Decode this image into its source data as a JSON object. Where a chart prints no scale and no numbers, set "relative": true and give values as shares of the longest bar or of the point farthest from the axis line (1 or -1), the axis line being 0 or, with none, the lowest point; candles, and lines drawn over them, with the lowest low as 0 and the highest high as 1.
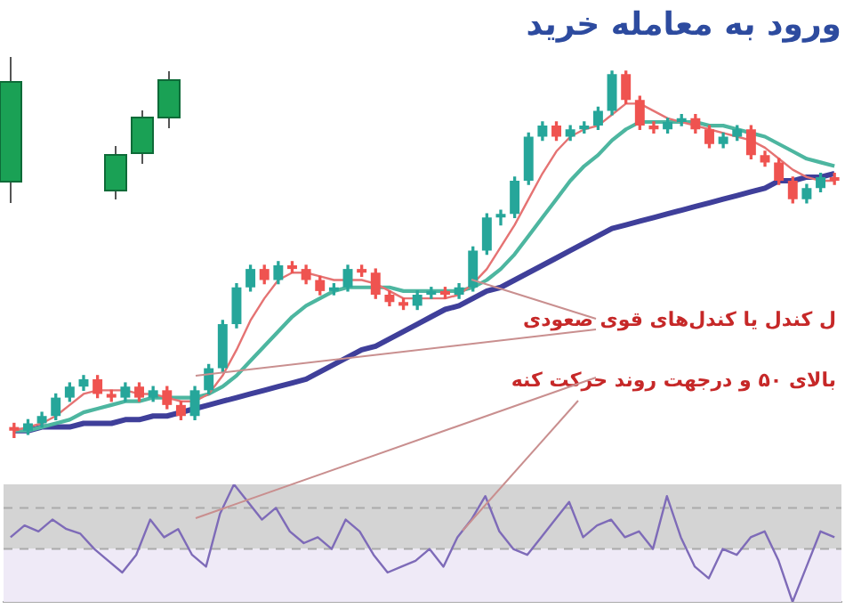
{
  "chart_data": [
    {
      "type": "candlestick",
      "title": "ورود به معامله خرید",
      "relative": true,
      "categories": [
        null,
        null,
        null,
        null,
        null,
        null,
        null,
        null,
        null,
        null,
        null,
        null,
        null,
        null,
        null,
        null,
        null,
        null,
        null,
        null,
        null,
        null,
        null,
        null,
        null,
        null,
        null,
        null,
        null,
        null,
        null,
        null,
        null,
        null,
        null,
        null,
        null,
        null,
        null,
        null,
        null,
        null,
        null,
        null,
        null,
        null,
        null,
        null,
        null,
        null,
        null,
        null,
        null,
        null,
        null,
        null,
        null,
        null,
        null,
        null
      ],
      "ohlc": [
        [
          0.03,
          0.04,
          0,
          0.02
        ],
        [
          0.02,
          0.05,
          0.01,
          0.04
        ],
        [
          0.04,
          0.07,
          0.03,
          0.06
        ],
        [
          0.06,
          0.12,
          0.05,
          0.11
        ],
        [
          0.11,
          0.15,
          0.1,
          0.14
        ],
        [
          0.14,
          0.17,
          0.13,
          0.16
        ],
        [
          0.16,
          0.17,
          0.11,
          0.12
        ],
        [
          0.12,
          0.13,
          0.1,
          0.11
        ],
        [
          0.11,
          0.15,
          0.1,
          0.14
        ],
        [
          0.14,
          0.15,
          0.1,
          0.11
        ],
        [
          0.11,
          0.14,
          0.1,
          0.13
        ],
        [
          0.13,
          0.14,
          0.08,
          0.09
        ],
        [
          0.09,
          0.1,
          0.05,
          0.06
        ],
        [
          0.06,
          0.14,
          0.05,
          0.13
        ],
        [
          0.13,
          0.2,
          0.12,
          0.19
        ],
        [
          0.19,
          0.32,
          0.18,
          0.31
        ],
        [
          0.31,
          0.42,
          0.3,
          0.41
        ],
        [
          0.41,
          0.47,
          0.4,
          0.46
        ],
        [
          0.46,
          0.47,
          0.42,
          0.43
        ],
        [
          0.43,
          0.48,
          0.42,
          0.47
        ],
        [
          0.47,
          0.48,
          0.45,
          0.46
        ],
        [
          0.46,
          0.47,
          0.42,
          0.43
        ],
        [
          0.43,
          0.44,
          0.39,
          0.4
        ],
        [
          0.4,
          0.42,
          0.39,
          0.41
        ],
        [
          0.41,
          0.47,
          0.4,
          0.46
        ],
        [
          0.46,
          0.47,
          0.44,
          0.45
        ],
        [
          0.45,
          0.46,
          0.38,
          0.39
        ],
        [
          0.39,
          0.4,
          0.36,
          0.37
        ],
        [
          0.37,
          0.38,
          0.35,
          0.36
        ],
        [
          0.36,
          0.4,
          0.35,
          0.39
        ],
        [
          0.39,
          0.41,
          0.38,
          0.4
        ],
        [
          0.4,
          0.41,
          0.38,
          0.39
        ],
        [
          0.39,
          0.42,
          0.38,
          0.41
        ],
        [
          0.41,
          0.52,
          0.4,
          0.51
        ],
        [
          0.51,
          0.61,
          0.5,
          0.6
        ],
        [
          0.6,
          0.62,
          0.58,
          0.61
        ],
        [
          0.61,
          0.71,
          0.6,
          0.7
        ],
        [
          0.7,
          0.83,
          0.69,
          0.82
        ],
        [
          0.82,
          0.86,
          0.81,
          0.85
        ],
        [
          0.85,
          0.86,
          0.81,
          0.82
        ],
        [
          0.82,
          0.85,
          0.81,
          0.84
        ],
        [
          0.84,
          0.86,
          0.83,
          0.85
        ],
        [
          0.85,
          0.9,
          0.84,
          0.89
        ],
        [
          0.89,
          1,
          0.88,
          0.99
        ],
        [
          0.99,
          1,
          0.91,
          0.92
        ],
        [
          0.92,
          0.93,
          0.84,
          0.85
        ],
        [
          0.85,
          0.86,
          0.83,
          0.84
        ],
        [
          0.84,
          0.87,
          0.83,
          0.86
        ],
        [
          0.86,
          0.88,
          0.85,
          0.87
        ],
        [
          0.87,
          0.88,
          0.83,
          0.84
        ],
        [
          0.84,
          0.85,
          0.79,
          0.8
        ],
        [
          0.8,
          0.83,
          0.79,
          0.82
        ],
        [
          0.82,
          0.85,
          0.81,
          0.84
        ],
        [
          0.84,
          0.85,
          0.76,
          0.77
        ],
        [
          0.77,
          0.78,
          0.74,
          0.75
        ],
        [
          0.75,
          0.76,
          0.69,
          0.7
        ],
        [
          0.7,
          0.71,
          0.64,
          0.65
        ],
        [
          0.65,
          0.69,
          0.64,
          0.68
        ],
        [
          0.68,
          0.72,
          0.67,
          0.71
        ],
        [
          0.71,
          0.72,
          0.69,
          0.7
        ]
      ],
      "series": [
        {
          "type": "line",
          "color": "#e57373",
          "values": [
            0.02,
            0.03,
            0.04,
            0.06,
            0.09,
            0.12,
            0.13,
            0.13,
            0.13,
            0.12,
            0.12,
            0.11,
            0.1,
            0.1,
            0.12,
            0.17,
            0.24,
            0.32,
            0.38,
            0.43,
            0.45,
            0.45,
            0.44,
            0.43,
            0.43,
            0.43,
            0.42,
            0.4,
            0.38,
            0.38,
            0.38,
            0.38,
            0.39,
            0.42,
            0.46,
            0.52,
            0.58,
            0.65,
            0.72,
            0.78,
            0.82,
            0.84,
            0.85,
            0.88,
            0.91,
            0.91,
            0.89,
            0.87,
            0.86,
            0.85,
            0.84,
            0.83,
            0.82,
            0.81,
            0.79,
            0.76,
            0.73,
            0.71,
            0.7,
            0.7
          ]
        },
        {
          "type": "line",
          "color": "#4db6a0",
          "values": [
            0.02,
            0.02,
            0.03,
            0.04,
            0.05,
            0.07,
            0.08,
            0.09,
            0.1,
            0.1,
            0.11,
            0.11,
            0.11,
            0.11,
            0.12,
            0.14,
            0.17,
            0.21,
            0.25,
            0.29,
            0.33,
            0.36,
            0.38,
            0.4,
            0.41,
            0.41,
            0.41,
            0.41,
            0.4,
            0.4,
            0.4,
            0.4,
            0.4,
            0.41,
            0.43,
            0.46,
            0.5,
            0.55,
            0.6,
            0.65,
            0.7,
            0.74,
            0.77,
            0.81,
            0.84,
            0.86,
            0.86,
            0.86,
            0.86,
            0.86,
            0.85,
            0.85,
            0.84,
            0.83,
            0.82,
            0.8,
            0.78,
            0.76,
            0.75,
            0.74
          ]
        },
        {
          "type": "line",
          "color": "#3f3f9a",
          "values": [
            0.02,
            0.02,
            0.03,
            0.03,
            0.03,
            0.04,
            0.04,
            0.04,
            0.05,
            0.05,
            0.06,
            0.06,
            0.07,
            0.08,
            0.09,
            0.1,
            0.11,
            0.12,
            0.13,
            0.14,
            0.15,
            0.16,
            0.18,
            0.2,
            0.22,
            0.24,
            0.25,
            0.27,
            0.29,
            0.31,
            0.33,
            0.35,
            0.36,
            0.38,
            0.4,
            0.41,
            0.43,
            0.45,
            0.47,
            0.49,
            0.51,
            0.53,
            0.55,
            0.57,
            0.58,
            0.59,
            0.6,
            0.61,
            0.62,
            0.63,
            0.64,
            0.65,
            0.66,
            0.67,
            0.68,
            0.7,
            0.7,
            0.71,
            0.71,
            0.72
          ]
        }
      ],
      "annotations": [
        "ل کندل یا کندل‌های قوی صعودی",
        "بالای ۵۰ و درجهت روند حرکت کنه"
      ]
    },
    {
      "type": "line",
      "relative": true,
      "categories": [
        null,
        null,
        null,
        null,
        null,
        null,
        null,
        null,
        null,
        null,
        null,
        null,
        null,
        null,
        null,
        null,
        null,
        null,
        null,
        null,
        null,
        null,
        null,
        null,
        null,
        null,
        null,
        null,
        null,
        null,
        null,
        null,
        null,
        null,
        null,
        null,
        null,
        null,
        null,
        null,
        null,
        null,
        null,
        null,
        null,
        null,
        null,
        null,
        null,
        null,
        null,
        null,
        null,
        null,
        null,
        null,
        null,
        null,
        null,
        null
      ],
      "series": [
        {
          "color": "#7e6bb8",
          "values": [
            0.55,
            0.65,
            0.6,
            0.7,
            0.62,
            0.58,
            0.45,
            0.35,
            0.25,
            0.4,
            0.7,
            0.55,
            0.62,
            0.4,
            0.3,
            0.75,
            1,
            0.85,
            0.7,
            0.8,
            0.6,
            0.5,
            0.55,
            0.45,
            0.7,
            0.6,
            0.4,
            0.25,
            0.3,
            0.35,
            0.45,
            0.3,
            0.55,
            0.7,
            0.9,
            0.6,
            0.45,
            0.4,
            0.55,
            0.7,
            0.85,
            0.55,
            0.65,
            0.7,
            0.55,
            0.6,
            0.45,
            0.9,
            0.55,
            0.3,
            0.2,
            0.45,
            0.4,
            0.55,
            0.6,
            0.35,
            0,
            0.3,
            0.6,
            0.55
          ]
        }
      ],
      "bands": [
        {
          "axis": "y",
          "from": 0.45,
          "to": 1,
          "color": "#d4d4d4"
        },
        {
          "axis": "y",
          "from": 0,
          "to": 0.45,
          "color": "#efeaf7"
        }
      ],
      "ref_lines": [
        {
          "axis": "y",
          "value": 0.8,
          "color": "#aaaaaa",
          "line_style": "dashed"
        },
        {
          "axis": "y",
          "value": 0.45,
          "color": "#aaaaaa",
          "line_style": "dashed"
        }
      ]
    }
  ]
}
